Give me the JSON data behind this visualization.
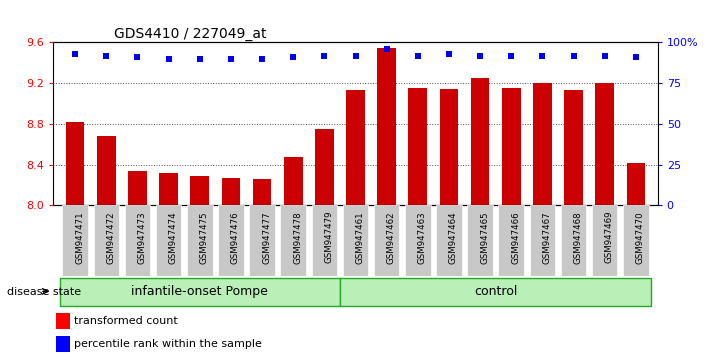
{
  "title": "GDS4410 / 227049_at",
  "samples": [
    "GSM947471",
    "GSM947472",
    "GSM947473",
    "GSM947474",
    "GSM947475",
    "GSM947476",
    "GSM947477",
    "GSM947478",
    "GSM947479",
    "GSM947461",
    "GSM947462",
    "GSM947463",
    "GSM947464",
    "GSM947465",
    "GSM947466",
    "GSM947467",
    "GSM947468",
    "GSM947469",
    "GSM947470"
  ],
  "bar_values": [
    8.82,
    8.68,
    8.34,
    8.32,
    8.29,
    8.27,
    8.26,
    8.47,
    8.75,
    9.13,
    9.55,
    9.15,
    9.14,
    9.25,
    9.15,
    9.2,
    9.13,
    9.2,
    8.42
  ],
  "percentile_values": [
    93,
    92,
    91,
    90,
    90,
    90,
    90,
    91,
    92,
    92,
    96,
    92,
    93,
    92,
    92,
    92,
    92,
    92,
    91
  ],
  "group_labels": [
    "infantile-onset Pompe",
    "control"
  ],
  "group_sizes": [
    9,
    10
  ],
  "bar_color": "#cc0000",
  "dot_color": "#0000ee",
  "ylim_left": [
    8.0,
    9.6
  ],
  "ylim_right": [
    0,
    100
  ],
  "yticks_left": [
    8.0,
    8.4,
    8.8,
    9.2,
    9.6
  ],
  "yticks_right": [
    0,
    25,
    50,
    75,
    100
  ],
  "legend_labels": [
    "transformed count",
    "percentile rank within the sample"
  ],
  "disease_state_label": "disease state",
  "light_green": "#b8f0b8",
  "dark_green": "#22aa22",
  "gray_tick_bg": "#c8c8c8"
}
